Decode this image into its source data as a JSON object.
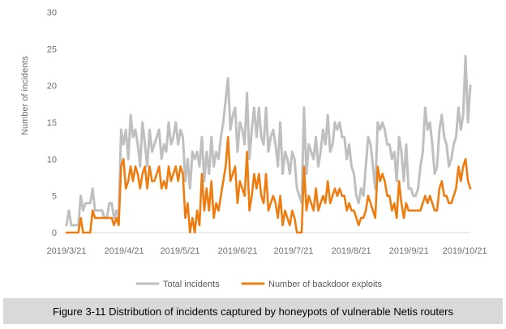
{
  "chart_data": {
    "type": "line",
    "title": "",
    "xlabel": "",
    "ylabel": "Number of incidents",
    "ylim": [
      0,
      30
    ],
    "yticks": [
      0,
      5,
      10,
      15,
      20,
      25,
      30
    ],
    "x_tick_labels": [
      "2019/3/21",
      "2019/4/21",
      "2019/5/21",
      "2019/6/21",
      "2019/7/21",
      "2019/8/21",
      "2019/9/21",
      "2019/10/21"
    ],
    "x_start": "2019/3/21",
    "x_end": "2019/10/24",
    "grid": false,
    "legend_position": "bottom",
    "colors": {
      "total": "#bfbfbf",
      "backdoor": "#ed7d11"
    },
    "series": [
      {
        "name": "Total incidents",
        "values": [
          1,
          3,
          1,
          1,
          1,
          1,
          5,
          3,
          4,
          4,
          4,
          6,
          3,
          3,
          3,
          3,
          2,
          2,
          4,
          4,
          2,
          3,
          2,
          14,
          12,
          14,
          10,
          16,
          13,
          14,
          12,
          9,
          15,
          12,
          9,
          14,
          11,
          12,
          13,
          14,
          10,
          12,
          11,
          15,
          12,
          13,
          15,
          12,
          14,
          13,
          7,
          10,
          6,
          11,
          10,
          11,
          9,
          13,
          7,
          11,
          8,
          13,
          9,
          11,
          10,
          13,
          15,
          18,
          21,
          14,
          16,
          17,
          11,
          15,
          14,
          12,
          19,
          10,
          14,
          17,
          13,
          17,
          13,
          12,
          17,
          11,
          13,
          14,
          12,
          9,
          15,
          8,
          11,
          10,
          8,
          11,
          10,
          6,
          5,
          4,
          17,
          8,
          12,
          11,
          10,
          13,
          9,
          11,
          14,
          12,
          16,
          11,
          12,
          15,
          14,
          15,
          13,
          13,
          10,
          12,
          9,
          8,
          5,
          4,
          6,
          5,
          9,
          13,
          12,
          9,
          6,
          15,
          14,
          15,
          14,
          12,
          12,
          10,
          11,
          7,
          13,
          11,
          7,
          12,
          6,
          6,
          5,
          5,
          6,
          9,
          11,
          17,
          14,
          15,
          12,
          8,
          9,
          14,
          16,
          13,
          12,
          9,
          10,
          12,
          13,
          17,
          14,
          16,
          24,
          15,
          20
        ]
      },
      {
        "name": "Number of backdoor exploits",
        "values": [
          0,
          0,
          0,
          0,
          0,
          0,
          2,
          0,
          0,
          0,
          0,
          3,
          2,
          2,
          2,
          2,
          2,
          2,
          2,
          2,
          1,
          2,
          1,
          9,
          10,
          6,
          7,
          9,
          7,
          9,
          8,
          6,
          8,
          9,
          6,
          9,
          7,
          7,
          8,
          9,
          6,
          7,
          6,
          9,
          7,
          8,
          9,
          7,
          9,
          8,
          2,
          4,
          0,
          2,
          0,
          3,
          1,
          8,
          3,
          6,
          3,
          7,
          2,
          4,
          3,
          5,
          7,
          9,
          13,
          7,
          8,
          9,
          4,
          7,
          6,
          5,
          11,
          3,
          5,
          8,
          6,
          8,
          5,
          4,
          8,
          3,
          4,
          5,
          4,
          2,
          5,
          1,
          3,
          2,
          1,
          3,
          2,
          0,
          0,
          0,
          9,
          3,
          5,
          4,
          3,
          6,
          3,
          4,
          5,
          4,
          7,
          4,
          5,
          6,
          5,
          6,
          5,
          5,
          3,
          4,
          3,
          3,
          2,
          1,
          2,
          2,
          3,
          5,
          4,
          3,
          2,
          9,
          7,
          8,
          7,
          5,
          5,
          3,
          4,
          2,
          7,
          4,
          2,
          4,
          3,
          3,
          3,
          3,
          3,
          3,
          4,
          5,
          4,
          5,
          4,
          3,
          3,
          6,
          7,
          5,
          5,
          4,
          4,
          5,
          6,
          9,
          7,
          9,
          10,
          7,
          6
        ]
      }
    ]
  },
  "caption": "Figure 3-11 Distribution of incidents captured by honeypots of vulnerable Netis routers"
}
